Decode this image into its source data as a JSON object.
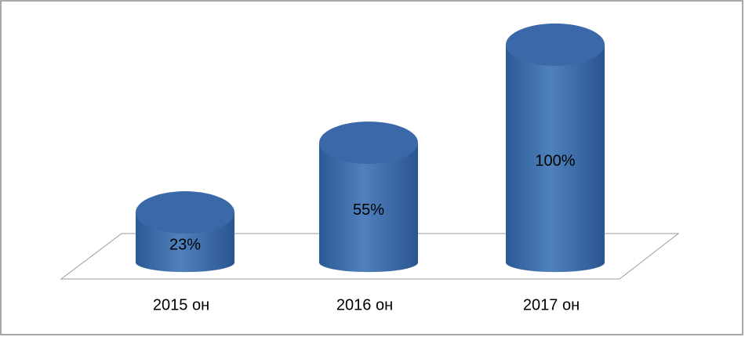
{
  "chart_data": {
    "type": "cylinder",
    "categories": [
      "2015 он",
      "2016 он",
      "2017 он"
    ],
    "values": [
      23,
      55,
      100
    ],
    "value_labels": [
      "23%",
      "55%",
      "100%"
    ],
    "color": "#4f81bd"
  }
}
